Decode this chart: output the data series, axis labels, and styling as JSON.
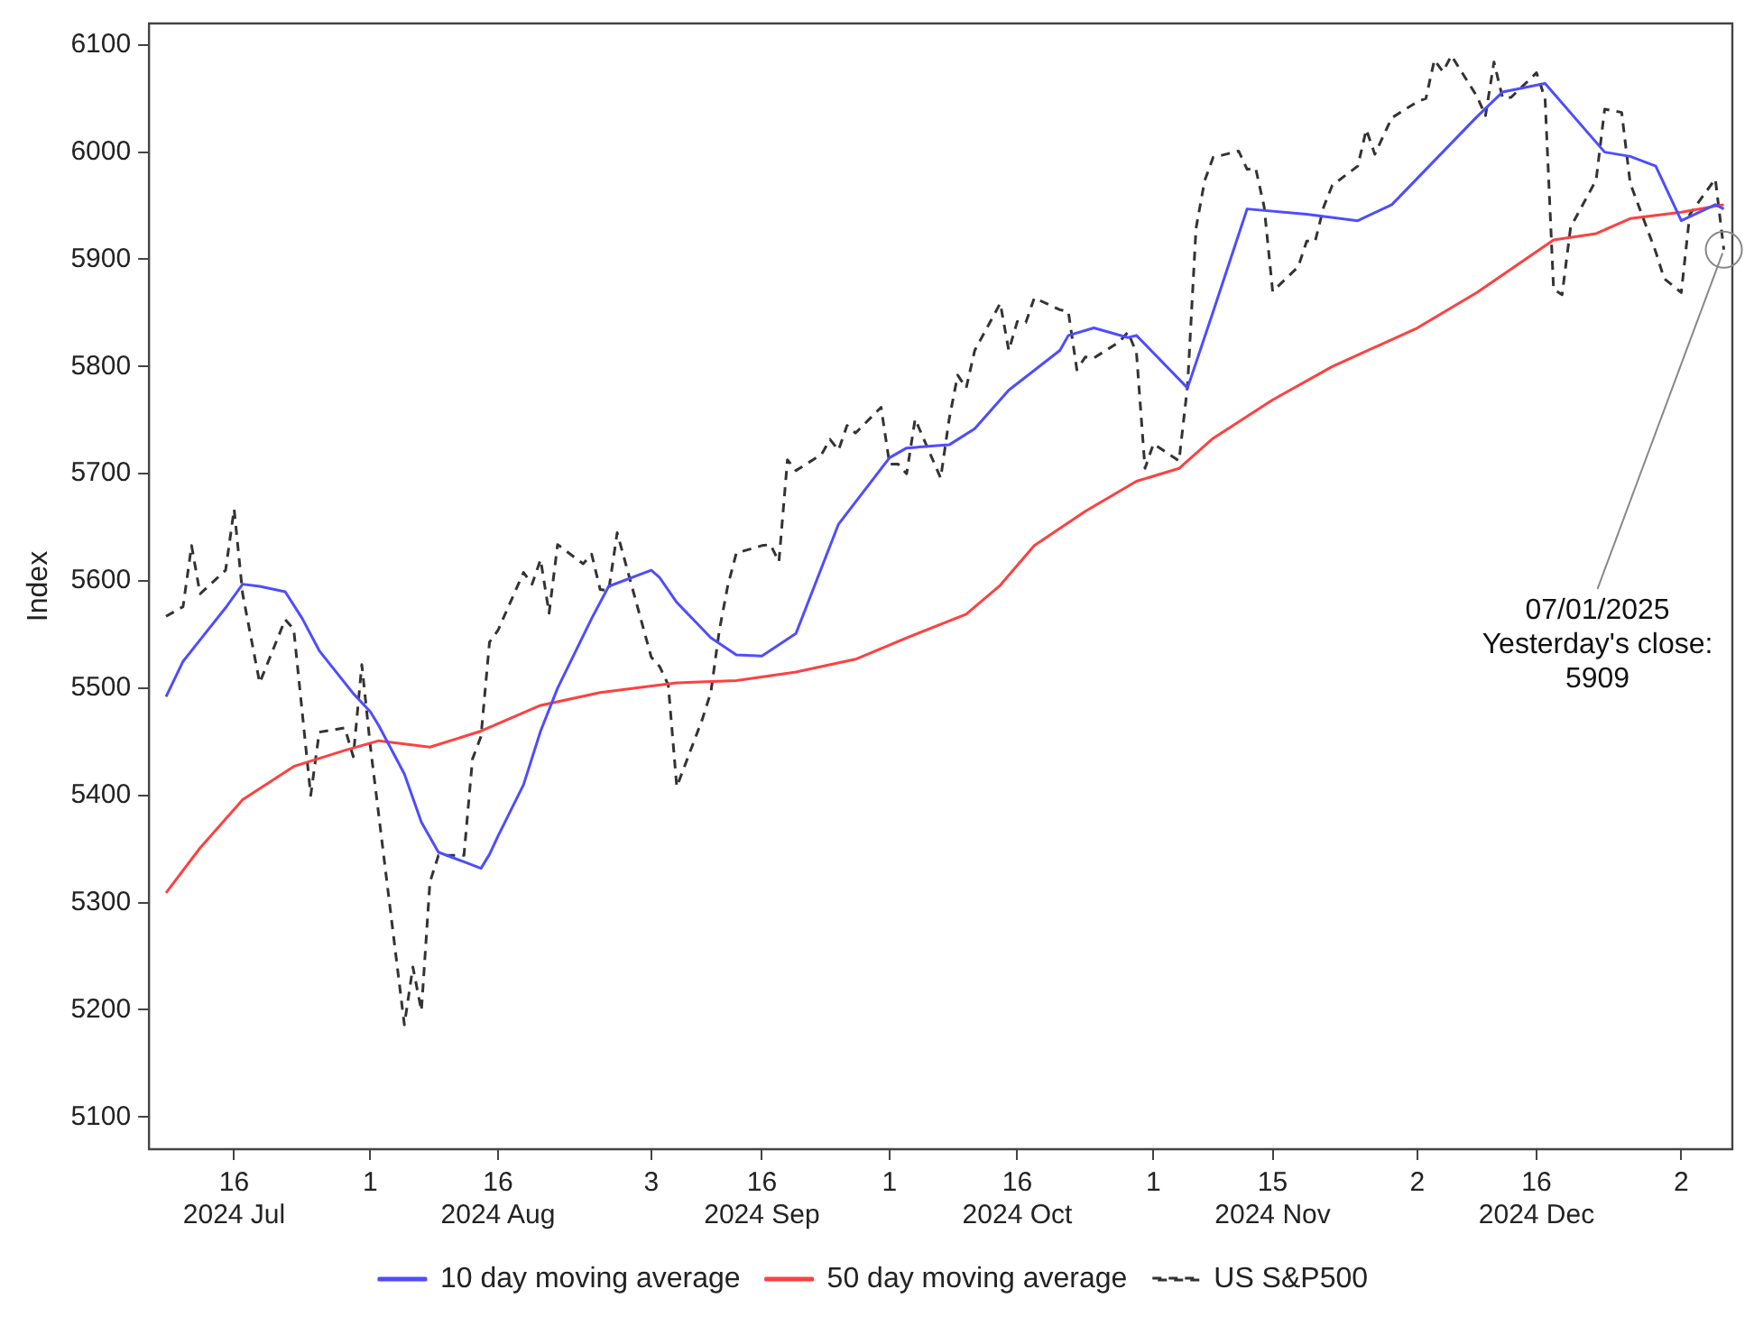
{
  "chart_data": {
    "type": "line",
    "ylabel": "Index",
    "legend": "bottom",
    "marker": "none",
    "xlim": [
      "2024-07-06",
      "2025-01-08"
    ],
    "xticks": [
      {
        "value": "2024-07-16",
        "label": "16\n2024 Jul"
      },
      {
        "value": "2024-08-01",
        "label": "1"
      },
      {
        "value": "2024-08-16",
        "label": "16\n2024 Aug"
      },
      {
        "value": "2024-09-03",
        "label": "3"
      },
      {
        "value": "2024-09-16",
        "label": "16\n2024 Sep"
      },
      {
        "value": "2024-10-01",
        "label": "1"
      },
      {
        "value": "2024-10-16",
        "label": "16\n2024 Oct"
      },
      {
        "value": "2024-11-01",
        "label": "1"
      },
      {
        "value": "2024-11-15",
        "label": "15\n2024 Nov"
      },
      {
        "value": "2024-12-02",
        "label": "2"
      },
      {
        "value": "2024-12-16",
        "label": "16\n2024 Dec"
      },
      {
        "value": "2025-01-02",
        "label": "2"
      }
    ],
    "ylim": [
      5070,
      6120
    ],
    "yticks": [
      5100,
      5200,
      5300,
      5400,
      5500,
      5600,
      5700,
      5800,
      5900,
      6000,
      6100
    ],
    "series": [
      {
        "name": "10 day moving average",
        "color": "#4d4dff",
        "line_style": "solid",
        "x": [
          "2024-07-08",
          "2024-07-10",
          "2024-07-12",
          "2024-07-15",
          "2024-07-17",
          "2024-07-19",
          "2024-07-22",
          "2024-07-24",
          "2024-07-26",
          "2024-07-30",
          "2024-08-01",
          "2024-08-02",
          "2024-08-05",
          "2024-08-07",
          "2024-08-09",
          "2024-08-12",
          "2024-08-14",
          "2024-08-15",
          "2024-08-16",
          "2024-08-19",
          "2024-08-21",
          "2024-08-23",
          "2024-08-27",
          "2024-08-29",
          "2024-09-03",
          "2024-09-04",
          "2024-09-06",
          "2024-09-10",
          "2024-09-13",
          "2024-09-16",
          "2024-09-20",
          "2024-09-25",
          "2024-10-01",
          "2024-10-03",
          "2024-10-08",
          "2024-10-11",
          "2024-10-15",
          "2024-10-21",
          "2024-10-22",
          "2024-10-25",
          "2024-10-29",
          "2024-10-30",
          "2024-11-05",
          "2024-11-08",
          "2024-11-12",
          "2024-11-19",
          "2024-11-25",
          "2024-11-29",
          "2024-12-09",
          "2024-12-12",
          "2024-12-17",
          "2024-12-24",
          "2024-12-27",
          "2024-12-30",
          "2025-01-02",
          "2025-01-06",
          "2025-01-07"
        ],
        "values": [
          5492,
          5525,
          5545,
          5575,
          5597,
          5595,
          5590,
          5565,
          5535,
          5495,
          5478,
          5465,
          5420,
          5375,
          5347,
          5338,
          5332,
          5345,
          5362,
          5410,
          5460,
          5500,
          5565,
          5595,
          5610,
          5603,
          5580,
          5547,
          5531,
          5530,
          5551,
          5653,
          5715,
          5724,
          5727,
          5742,
          5778,
          5815,
          5829,
          5836,
          5827,
          5829,
          5780,
          5851,
          5947,
          5942,
          5936,
          5951,
          6033,
          6056,
          6064,
          6000,
          5996,
          5987,
          5936,
          5951,
          5947
        ]
      },
      {
        "name": "50 day moving average",
        "color": "#ff4040",
        "line_style": "solid",
        "x": [
          "2024-07-08",
          "2024-07-12",
          "2024-07-17",
          "2024-07-23",
          "2024-07-29",
          "2024-08-02",
          "2024-08-08",
          "2024-08-14",
          "2024-08-21",
          "2024-08-28",
          "2024-09-06",
          "2024-09-13",
          "2024-09-20",
          "2024-09-27",
          "2024-10-03",
          "2024-10-10",
          "2024-10-14",
          "2024-10-18",
          "2024-10-24",
          "2024-10-30",
          "2024-11-04",
          "2024-11-08",
          "2024-11-15",
          "2024-11-22",
          "2024-12-02",
          "2024-12-09",
          "2024-12-18",
          "2024-12-23",
          "2024-12-27",
          "2025-01-02",
          "2025-01-07"
        ],
        "values": [
          5309,
          5351,
          5396,
          5427,
          5442,
          5451,
          5445,
          5460,
          5484,
          5496,
          5505,
          5507,
          5515,
          5527,
          5547,
          5569,
          5596,
          5633,
          5665,
          5693,
          5705,
          5733,
          5769,
          5800,
          5836,
          5869,
          5918,
          5924,
          5938,
          5944,
          5951
        ]
      },
      {
        "name": "US S&P500",
        "color": "#333333",
        "line_style": "dashed",
        "x": [
          "2024-07-08",
          "2024-07-10",
          "2024-07-11",
          "2024-07-12",
          "2024-07-15",
          "2024-07-16",
          "2024-07-17",
          "2024-07-19",
          "2024-07-22",
          "2024-07-23",
          "2024-07-25",
          "2024-07-26",
          "2024-07-29",
          "2024-07-30",
          "2024-07-31",
          "2024-08-01",
          "2024-08-05",
          "2024-08-06",
          "2024-08-07",
          "2024-08-08",
          "2024-08-09",
          "2024-08-12",
          "2024-08-13",
          "2024-08-14",
          "2024-08-15",
          "2024-08-16",
          "2024-08-19",
          "2024-08-20",
          "2024-08-21",
          "2024-08-22",
          "2024-08-23",
          "2024-08-26",
          "2024-08-27",
          "2024-08-28",
          "2024-08-29",
          "2024-08-30",
          "2024-09-03",
          "2024-09-04",
          "2024-09-05",
          "2024-09-06",
          "2024-09-09",
          "2024-09-10",
          "2024-09-11",
          "2024-09-12",
          "2024-09-13",
          "2024-09-16",
          "2024-09-17",
          "2024-09-18",
          "2024-09-19",
          "2024-09-20",
          "2024-09-23",
          "2024-09-24",
          "2024-09-25",
          "2024-09-26",
          "2024-09-27",
          "2024-09-30",
          "2024-10-01",
          "2024-10-02",
          "2024-10-03",
          "2024-10-04",
          "2024-10-07",
          "2024-10-08",
          "2024-10-09",
          "2024-10-10",
          "2024-10-11",
          "2024-10-14",
          "2024-10-15",
          "2024-10-16",
          "2024-10-17",
          "2024-10-18",
          "2024-10-21",
          "2024-10-22",
          "2024-10-23",
          "2024-10-24",
          "2024-10-25",
          "2024-10-28",
          "2024-10-29",
          "2024-10-30",
          "2024-10-31",
          "2024-11-01",
          "2024-11-04",
          "2024-11-05",
          "2024-11-06",
          "2024-11-07",
          "2024-11-08",
          "2024-11-11",
          "2024-11-12",
          "2024-11-13",
          "2024-11-14",
          "2024-11-15",
          "2024-11-18",
          "2024-11-19",
          "2024-11-20",
          "2024-11-21",
          "2024-11-22",
          "2024-11-25",
          "2024-11-26",
          "2024-11-27",
          "2024-11-29",
          "2024-12-02",
          "2024-12-03",
          "2024-12-04",
          "2024-12-05",
          "2024-12-06",
          "2024-12-09",
          "2024-12-10",
          "2024-12-11",
          "2024-12-12",
          "2024-12-13",
          "2024-12-16",
          "2024-12-17",
          "2024-12-18",
          "2024-12-19",
          "2024-12-20",
          "2024-12-23",
          "2024-12-24",
          "2024-12-26",
          "2024-12-27",
          "2024-12-30",
          "2024-12-31",
          "2025-01-02",
          "2025-01-03",
          "2025-01-06",
          "2025-01-07"
        ],
        "values": [
          5567,
          5576,
          5633,
          5588,
          5610,
          5667,
          5588,
          5505,
          5564,
          5555,
          5400,
          5459,
          5463,
          5436,
          5522,
          5446,
          5186,
          5240,
          5199,
          5319,
          5344,
          5344,
          5434,
          5455,
          5543,
          5554,
          5608,
          5597,
          5620,
          5570,
          5634,
          5616,
          5625,
          5592,
          5591,
          5645,
          5529,
          5520,
          5503,
          5408,
          5471,
          5496,
          5554,
          5596,
          5626,
          5633,
          5634,
          5618,
          5713,
          5703,
          5718,
          5732,
          5722,
          5745,
          5738,
          5762,
          5709,
          5709,
          5700,
          5751,
          5696,
          5751,
          5792,
          5780,
          5815,
          5859,
          5815,
          5842,
          5841,
          5864,
          5853,
          5851,
          5797,
          5809,
          5808,
          5823,
          5832,
          5813,
          5705,
          5728,
          5712,
          5782,
          5929,
          5973,
          5995,
          6001,
          5984,
          5985,
          5949,
          5870,
          5893,
          5917,
          5917,
          5949,
          5969,
          5987,
          6021,
          5998,
          6032,
          6047,
          6050,
          6086,
          6075,
          6090,
          6052,
          6034,
          6084,
          6051,
          6051,
          6074,
          6050,
          5872,
          5867,
          5930,
          5974,
          6040,
          6037,
          5971,
          5907,
          5882,
          5869,
          5942,
          5975,
          5909
        ]
      }
    ],
    "annotations": [
      {
        "text": "07/01/2025\nYesterday's close:\n5909",
        "x": "2025-01-07",
        "y": 5909
      }
    ]
  }
}
